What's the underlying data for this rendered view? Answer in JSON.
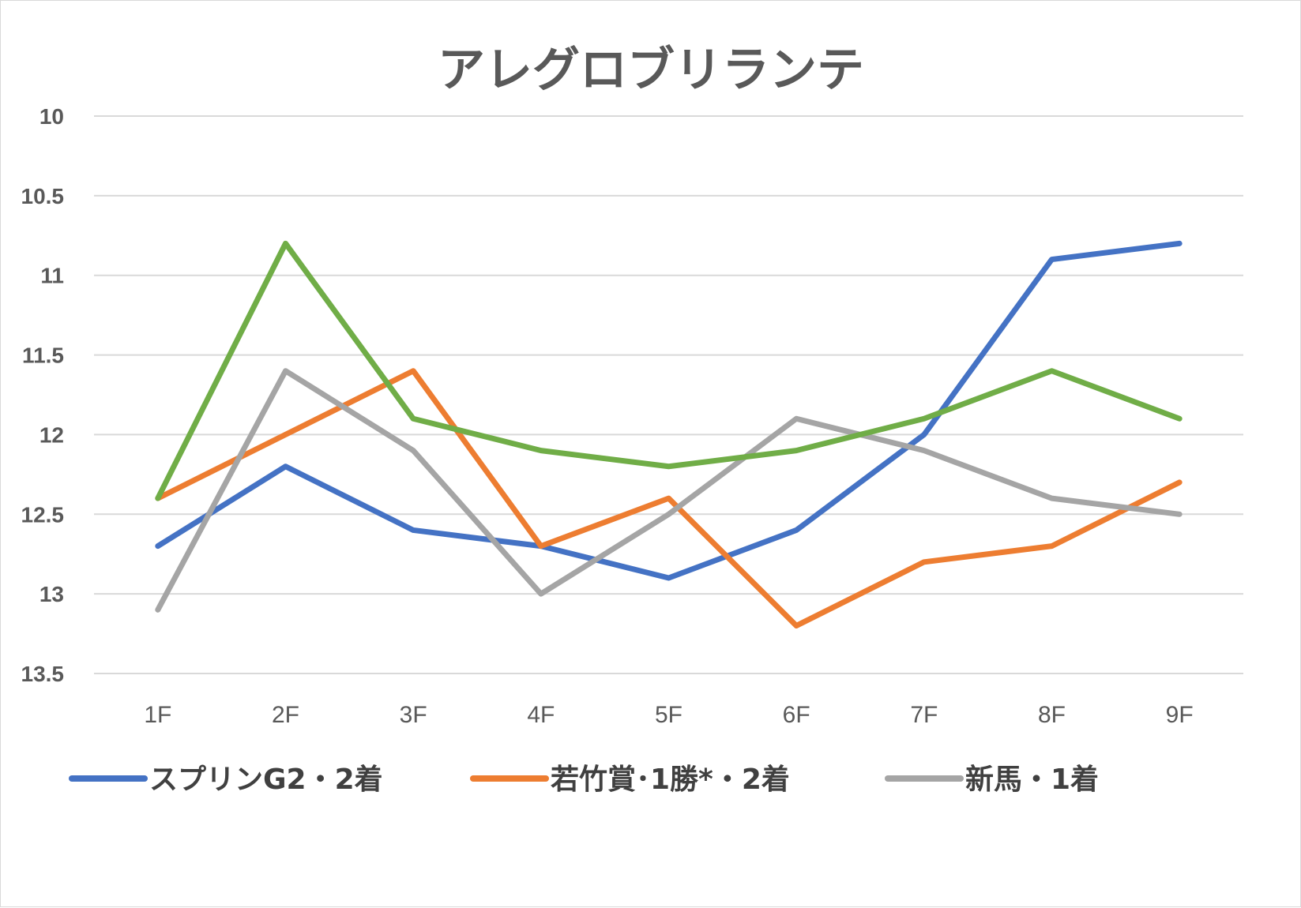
{
  "chart_data": {
    "type": "line",
    "title": "アレグロブリランテ",
    "xlabel": "",
    "ylabel": "",
    "categories": [
      "1F",
      "2F",
      "3F",
      "4F",
      "5F",
      "6F",
      "7F",
      "8F",
      "9F"
    ],
    "y_ticks": [
      "10",
      "10.5",
      "11",
      "11.5",
      "12",
      "12.5",
      "13",
      "13.5"
    ],
    "ylim": [
      10,
      13.5
    ],
    "y_reversed": true,
    "grid": true,
    "legend_position": "bottom",
    "series": [
      {
        "name": "スプリンG2・2着",
        "color": "#4472c4",
        "values": [
          12.7,
          12.2,
          12.6,
          12.7,
          12.9,
          12.6,
          12.0,
          10.9,
          10.8
        ]
      },
      {
        "name": "若竹賞･1勝*・2着",
        "color": "#ed7d31",
        "values": [
          12.4,
          12.0,
          11.6,
          12.7,
          12.4,
          13.2,
          12.8,
          12.7,
          12.3
        ]
      },
      {
        "name": "新馬・1着",
        "color": "#a5a5a5",
        "values": [
          13.1,
          11.6,
          12.1,
          13.0,
          12.5,
          11.9,
          12.1,
          12.4,
          12.5
        ]
      },
      {
        "color": "#70ad47",
        "values": [
          12.4,
          10.8,
          11.9,
          12.1,
          12.2,
          12.1,
          11.9,
          11.6,
          11.9
        ]
      }
    ]
  }
}
